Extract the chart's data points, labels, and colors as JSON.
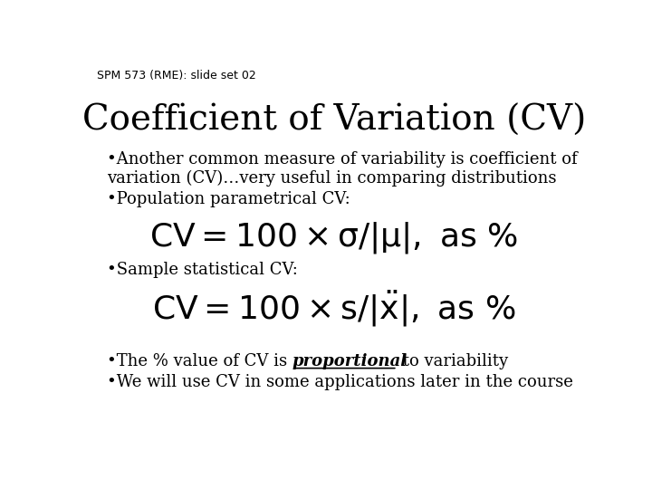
{
  "background_color": "#ffffff",
  "slide_label": "SPM 573 (RME): slide set 02",
  "slide_label_fontsize": 9,
  "title": "Coefficient of Variation (CV)",
  "title_fontsize": 28,
  "bullet1_line1": "•Another common measure of variability is coefficient of",
  "bullet1_line2": "variation (CV)…very useful in comparing distributions",
  "bullet2": "•Population parametrical CV:",
  "bullet3": "•Sample statistical CV:",
  "bullet4_prefix": "•The % value of CV is ",
  "bullet4_bold_italic": "proportional",
  "bullet4_suffix": " to variability",
  "bullet5": "•We will use CV in some applications later in the course",
  "body_fontsize": 13,
  "formula_fontsize": 26,
  "text_color": "#000000"
}
